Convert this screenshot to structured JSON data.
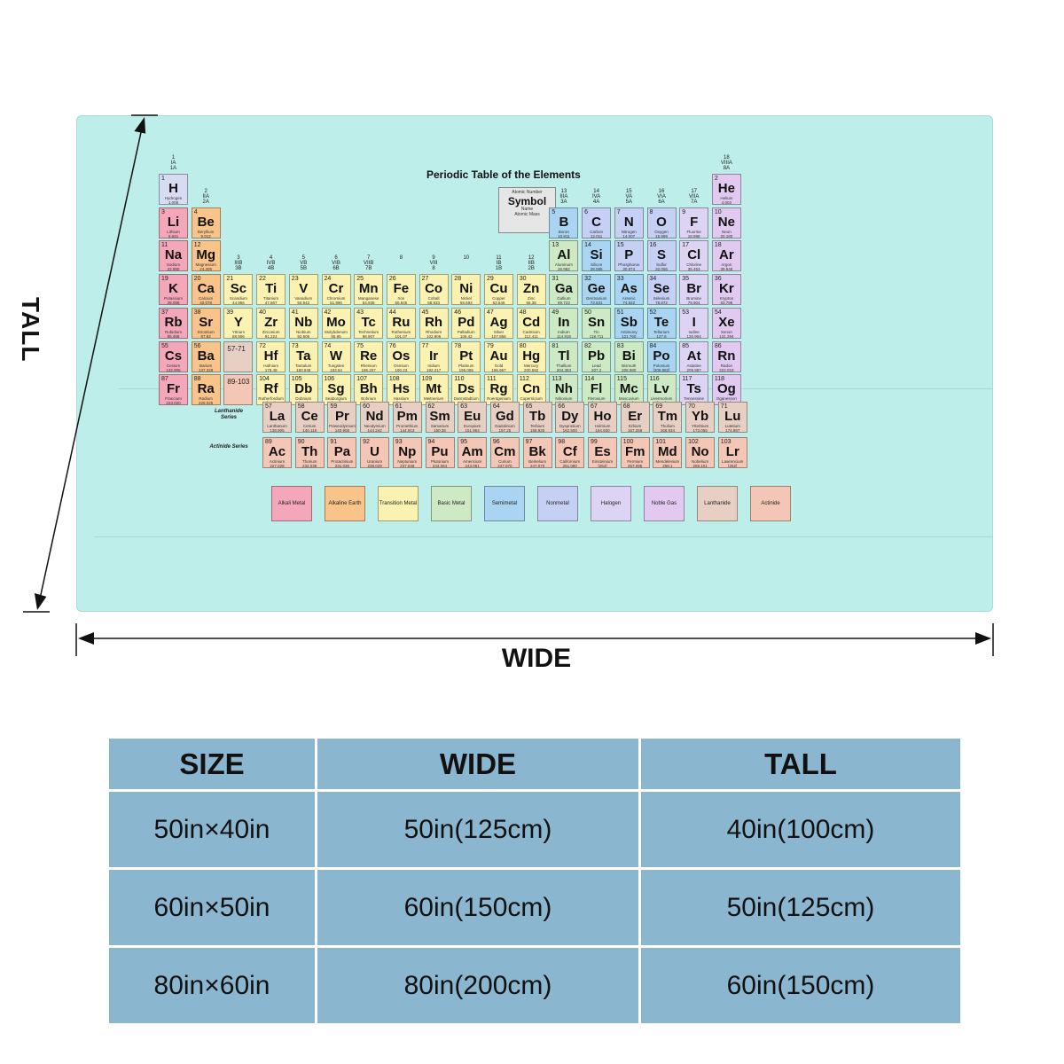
{
  "labels": {
    "tall": "TALL",
    "wide": "WIDE"
  },
  "size_table": {
    "headers": [
      "SIZE",
      "WIDE",
      "TALL"
    ],
    "rows": [
      [
        "50in×40in",
        "50in(125cm)",
        "40in(100cm)"
      ],
      [
        "60in×50in",
        "60in(150cm)",
        "50in(125cm)"
      ],
      [
        "80in×60in",
        "80in(200cm)",
        "60in(150cm)"
      ]
    ]
  },
  "periodic_table": {
    "title": "Periodic Table of the Elements",
    "key": {
      "atomic_number": "Atomic Number",
      "symbol": "Symbol",
      "name": "Name",
      "atomic_mass": "Atomic Mass"
    },
    "series_labels": {
      "lanthanide": "Lanthanide Series",
      "actinide": "Actinide Series"
    },
    "placeholders": {
      "lanthanides": "57-71",
      "actinides": "89-103"
    },
    "category_colors": {
      "alkali": "#f4a7b9",
      "alkaline": "#f9c48a",
      "transition": "#fbf1b0",
      "basic": "#cdeac4",
      "semimetal": "#a9d5f2",
      "nonmetal": "#c6cff4",
      "halogen": "#ddd3f3",
      "noble": "#e2c9ef",
      "lanthanide": "#e8cfc4",
      "actinide": "#f3c6b6",
      "hydrogen": "#d8dcf3"
    },
    "legend": [
      {
        "label": "Alkali Metal",
        "cat": "alkali"
      },
      {
        "label": "Alkaline Earth",
        "cat": "alkaline"
      },
      {
        "label": "Transition Metal",
        "cat": "transition"
      },
      {
        "label": "Basic Metal",
        "cat": "basic"
      },
      {
        "label": "Semimetal",
        "cat": "semimetal"
      },
      {
        "label": "Nonmetal",
        "cat": "nonmetal"
      },
      {
        "label": "Halogen",
        "cat": "halogen"
      },
      {
        "label": "Noble Gas",
        "cat": "noble"
      },
      {
        "label": "Lanthanide",
        "cat": "lanthanide"
      },
      {
        "label": "Actinide",
        "cat": "actinide"
      }
    ],
    "groups": [
      {
        "col": 1,
        "row": 1,
        "num": "1",
        "name": "IA",
        "alt": "1A"
      },
      {
        "col": 2,
        "row": 2,
        "num": "2",
        "name": "IIA",
        "alt": "2A"
      },
      {
        "col": 3,
        "row": 4,
        "num": "3",
        "name": "IIIB",
        "alt": "3B"
      },
      {
        "col": 4,
        "row": 4,
        "num": "4",
        "name": "IVB",
        "alt": "4B"
      },
      {
        "col": 5,
        "row": 4,
        "num": "5",
        "name": "VB",
        "alt": "5B"
      },
      {
        "col": 6,
        "row": 4,
        "num": "6",
        "name": "VIB",
        "alt": "6B"
      },
      {
        "col": 7,
        "row": 4,
        "num": "7",
        "name": "VIIB",
        "alt": "7B"
      },
      {
        "col": 8,
        "row": 4,
        "num": "8",
        "name": "",
        "alt": ""
      },
      {
        "col": 9,
        "row": 4,
        "num": "9",
        "name": "VIII",
        "alt": "8"
      },
      {
        "col": 10,
        "row": 4,
        "num": "10",
        "name": "",
        "alt": ""
      },
      {
        "col": 11,
        "row": 4,
        "num": "11",
        "name": "IB",
        "alt": "1B"
      },
      {
        "col": 12,
        "row": 4,
        "num": "12",
        "name": "IIB",
        "alt": "2B"
      },
      {
        "col": 13,
        "row": 2,
        "num": "13",
        "name": "IIIA",
        "alt": "3A"
      },
      {
        "col": 14,
        "row": 2,
        "num": "14",
        "name": "IVA",
        "alt": "4A"
      },
      {
        "col": 15,
        "row": 2,
        "num": "15",
        "name": "VA",
        "alt": "5A"
      },
      {
        "col": 16,
        "row": 2,
        "num": "16",
        "name": "VIA",
        "alt": "6A"
      },
      {
        "col": 17,
        "row": 2,
        "num": "17",
        "name": "VIIA",
        "alt": "7A"
      },
      {
        "col": 18,
        "row": 1,
        "num": "18",
        "name": "VIIIA",
        "alt": "8A"
      }
    ],
    "elements": [
      [
        "1",
        "H",
        "Hydrogen",
        "1.008",
        1,
        1,
        "hydrogen"
      ],
      [
        "2",
        "He",
        "Helium",
        "4.003",
        18,
        1,
        "noble"
      ],
      [
        "3",
        "Li",
        "Lithium",
        "6.941",
        1,
        2,
        "alkali"
      ],
      [
        "4",
        "Be",
        "Beryllium",
        "9.012",
        2,
        2,
        "alkaline"
      ],
      [
        "5",
        "B",
        "Boron",
        "10.811",
        13,
        2,
        "semimetal"
      ],
      [
        "6",
        "C",
        "Carbon",
        "12.011",
        14,
        2,
        "nonmetal"
      ],
      [
        "7",
        "N",
        "Nitrogen",
        "14.007",
        15,
        2,
        "nonmetal"
      ],
      [
        "8",
        "O",
        "Oxygen",
        "15.999",
        16,
        2,
        "nonmetal"
      ],
      [
        "9",
        "F",
        "Fluorine",
        "18.998",
        17,
        2,
        "halogen"
      ],
      [
        "10",
        "Ne",
        "Neon",
        "20.180",
        18,
        2,
        "noble"
      ],
      [
        "11",
        "Na",
        "Sodium",
        "22.990",
        1,
        3,
        "alkali"
      ],
      [
        "12",
        "Mg",
        "Magnesium",
        "24.305",
        2,
        3,
        "alkaline"
      ],
      [
        "13",
        "Al",
        "Aluminum",
        "26.982",
        13,
        3,
        "basic"
      ],
      [
        "14",
        "Si",
        "Silicon",
        "28.086",
        14,
        3,
        "semimetal"
      ],
      [
        "15",
        "P",
        "Phosphorus",
        "30.974",
        15,
        3,
        "nonmetal"
      ],
      [
        "16",
        "S",
        "Sulfur",
        "32.065",
        16,
        3,
        "nonmetal"
      ],
      [
        "17",
        "Cl",
        "Chlorine",
        "35.453",
        17,
        3,
        "halogen"
      ],
      [
        "18",
        "Ar",
        "Argon",
        "39.948",
        18,
        3,
        "noble"
      ],
      [
        "19",
        "K",
        "Potassium",
        "39.098",
        1,
        4,
        "alkali"
      ],
      [
        "20",
        "Ca",
        "Calcium",
        "40.078",
        2,
        4,
        "alkaline"
      ],
      [
        "21",
        "Sc",
        "Scandium",
        "44.956",
        3,
        4,
        "transition"
      ],
      [
        "22",
        "Ti",
        "Titanium",
        "47.867",
        4,
        4,
        "transition"
      ],
      [
        "23",
        "V",
        "Vanadium",
        "50.942",
        5,
        4,
        "transition"
      ],
      [
        "24",
        "Cr",
        "Chromium",
        "51.996",
        6,
        4,
        "transition"
      ],
      [
        "25",
        "Mn",
        "Manganese",
        "54.938",
        7,
        4,
        "transition"
      ],
      [
        "26",
        "Fe",
        "Iron",
        "55.845",
        8,
        4,
        "transition"
      ],
      [
        "27",
        "Co",
        "Cobalt",
        "58.933",
        9,
        4,
        "transition"
      ],
      [
        "28",
        "Ni",
        "Nickel",
        "58.693",
        10,
        4,
        "transition"
      ],
      [
        "29",
        "Cu",
        "Copper",
        "63.546",
        11,
        4,
        "transition"
      ],
      [
        "30",
        "Zn",
        "Zinc",
        "65.38",
        12,
        4,
        "transition"
      ],
      [
        "31",
        "Ga",
        "Gallium",
        "69.723",
        13,
        4,
        "basic"
      ],
      [
        "32",
        "Ge",
        "Germanium",
        "72.631",
        14,
        4,
        "semimetal"
      ],
      [
        "33",
        "As",
        "Arsenic",
        "74.922",
        15,
        4,
        "semimetal"
      ],
      [
        "34",
        "Se",
        "Selenium",
        "78.972",
        16,
        4,
        "nonmetal"
      ],
      [
        "35",
        "Br",
        "Bromine",
        "79.904",
        17,
        4,
        "halogen"
      ],
      [
        "36",
        "Kr",
        "Krypton",
        "83.798",
        18,
        4,
        "noble"
      ],
      [
        "37",
        "Rb",
        "Rubidium",
        "85.468",
        1,
        5,
        "alkali"
      ],
      [
        "38",
        "Sr",
        "Strontium",
        "87.62",
        2,
        5,
        "alkaline"
      ],
      [
        "39",
        "Y",
        "Yttrium",
        "88.906",
        3,
        5,
        "transition"
      ],
      [
        "40",
        "Zr",
        "Zirconium",
        "91.224",
        4,
        5,
        "transition"
      ],
      [
        "41",
        "Nb",
        "Niobium",
        "92.906",
        5,
        5,
        "transition"
      ],
      [
        "42",
        "Mo",
        "Molybdenum",
        "95.95",
        6,
        5,
        "transition"
      ],
      [
        "43",
        "Tc",
        "Technetium",
        "98.907",
        7,
        5,
        "transition"
      ],
      [
        "44",
        "Ru",
        "Ruthenium",
        "101.07",
        8,
        5,
        "transition"
      ],
      [
        "45",
        "Rh",
        "Rhodium",
        "102.906",
        9,
        5,
        "transition"
      ],
      [
        "46",
        "Pd",
        "Palladium",
        "106.42",
        10,
        5,
        "transition"
      ],
      [
        "47",
        "Ag",
        "Silver",
        "107.868",
        11,
        5,
        "transition"
      ],
      [
        "48",
        "Cd",
        "Cadmium",
        "112.411",
        12,
        5,
        "transition"
      ],
      [
        "49",
        "In",
        "Indium",
        "114.818",
        13,
        5,
        "basic"
      ],
      [
        "50",
        "Sn",
        "Tin",
        "118.711",
        14,
        5,
        "basic"
      ],
      [
        "51",
        "Sb",
        "Antimony",
        "121.760",
        15,
        5,
        "semimetal"
      ],
      [
        "52",
        "Te",
        "Tellurium",
        "127.6",
        16,
        5,
        "semimetal"
      ],
      [
        "53",
        "I",
        "Iodine",
        "126.904",
        17,
        5,
        "halogen"
      ],
      [
        "54",
        "Xe",
        "Xenon",
        "131.294",
        18,
        5,
        "noble"
      ],
      [
        "55",
        "Cs",
        "Cesium",
        "132.905",
        1,
        6,
        "alkali"
      ],
      [
        "56",
        "Ba",
        "Barium",
        "137.328",
        2,
        6,
        "alkaline"
      ],
      [
        "72",
        "Hf",
        "Hafnium",
        "178.49",
        4,
        6,
        "transition"
      ],
      [
        "73",
        "Ta",
        "Tantalum",
        "180.948",
        5,
        6,
        "transition"
      ],
      [
        "74",
        "W",
        "Tungsten",
        "183.84",
        6,
        6,
        "transition"
      ],
      [
        "75",
        "Re",
        "Rhenium",
        "186.207",
        7,
        6,
        "transition"
      ],
      [
        "76",
        "Os",
        "Osmium",
        "190.23",
        8,
        6,
        "transition"
      ],
      [
        "77",
        "Ir",
        "Iridium",
        "192.217",
        9,
        6,
        "transition"
      ],
      [
        "78",
        "Pt",
        "Platinum",
        "195.085",
        10,
        6,
        "transition"
      ],
      [
        "79",
        "Au",
        "Gold",
        "196.967",
        11,
        6,
        "transition"
      ],
      [
        "80",
        "Hg",
        "Mercury",
        "200.592",
        12,
        6,
        "transition"
      ],
      [
        "81",
        "Tl",
        "Thallium",
        "204.383",
        13,
        6,
        "basic"
      ],
      [
        "82",
        "Pb",
        "Lead",
        "207.2",
        14,
        6,
        "basic"
      ],
      [
        "83",
        "Bi",
        "Bismuth",
        "208.980",
        15,
        6,
        "basic"
      ],
      [
        "84",
        "Po",
        "Polonium",
        "[208.982]",
        16,
        6,
        "semimetal"
      ],
      [
        "85",
        "At",
        "Astatine",
        "209.987",
        17,
        6,
        "halogen"
      ],
      [
        "86",
        "Rn",
        "Radon",
        "222.018",
        18,
        6,
        "noble"
      ],
      [
        "87",
        "Fr",
        "Francium",
        "223.020",
        1,
        7,
        "alkali"
      ],
      [
        "88",
        "Ra",
        "Radium",
        "226.025",
        2,
        7,
        "alkaline"
      ],
      [
        "104",
        "Rf",
        "Rutherfordium",
        "[261]",
        4,
        7,
        "transition"
      ],
      [
        "105",
        "Db",
        "Dubnium",
        "[262]",
        5,
        7,
        "transition"
      ],
      [
        "106",
        "Sg",
        "Seaborgium",
        "[266]",
        6,
        7,
        "transition"
      ],
      [
        "107",
        "Bh",
        "Bohrium",
        "[264]",
        7,
        7,
        "transition"
      ],
      [
        "108",
        "Hs",
        "Hassium",
        "[269]",
        8,
        7,
        "transition"
      ],
      [
        "109",
        "Mt",
        "Meitnerium",
        "[278]",
        9,
        7,
        "transition"
      ],
      [
        "110",
        "Ds",
        "Darmstadtium",
        "[281]",
        10,
        7,
        "transition"
      ],
      [
        "111",
        "Rg",
        "Roentgenium",
        "[280]",
        11,
        7,
        "transition"
      ],
      [
        "112",
        "Cn",
        "Copernicium",
        "[285]",
        12,
        7,
        "transition"
      ],
      [
        "113",
        "Nh",
        "Nihonium",
        "[286]",
        13,
        7,
        "basic"
      ],
      [
        "114",
        "Fl",
        "Flerovium",
        "[289]",
        14,
        7,
        "basic"
      ],
      [
        "115",
        "Mc",
        "Moscovium",
        "[289]",
        15,
        7,
        "basic"
      ],
      [
        "116",
        "Lv",
        "Livermorium",
        "[293]",
        16,
        7,
        "basic"
      ],
      [
        "117",
        "Ts",
        "Tennessine",
        "[294]",
        17,
        7,
        "halogen"
      ],
      [
        "118",
        "Og",
        "Oganesson",
        "[294]",
        18,
        7,
        "noble"
      ]
    ],
    "lanthanides": [
      [
        "57",
        "La",
        "Lanthanum",
        "138.905"
      ],
      [
        "58",
        "Ce",
        "Cerium",
        "140.116"
      ],
      [
        "59",
        "Pr",
        "Praseodymium",
        "140.908"
      ],
      [
        "60",
        "Nd",
        "Neodymium",
        "144.242"
      ],
      [
        "61",
        "Pm",
        "Promethium",
        "144.913"
      ],
      [
        "62",
        "Sm",
        "Samarium",
        "150.36"
      ],
      [
        "63",
        "Eu",
        "Europium",
        "151.964"
      ],
      [
        "64",
        "Gd",
        "Gadolinium",
        "157.25"
      ],
      [
        "65",
        "Tb",
        "Terbium",
        "158.925"
      ],
      [
        "66",
        "Dy",
        "Dysprosium",
        "162.500"
      ],
      [
        "67",
        "Ho",
        "Holmium",
        "164.930"
      ],
      [
        "68",
        "Er",
        "Erbium",
        "167.259"
      ],
      [
        "69",
        "Tm",
        "Thulium",
        "168.934"
      ],
      [
        "70",
        "Yb",
        "Ytterbium",
        "173.055"
      ],
      [
        "71",
        "Lu",
        "Lutetium",
        "174.967"
      ]
    ],
    "actinides": [
      [
        "89",
        "Ac",
        "Actinium",
        "227.028"
      ],
      [
        "90",
        "Th",
        "Thorium",
        "232.038"
      ],
      [
        "91",
        "Pa",
        "Protactinium",
        "231.036"
      ],
      [
        "92",
        "U",
        "Uranium",
        "238.029"
      ],
      [
        "93",
        "Np",
        "Neptunium",
        "237.048"
      ],
      [
        "94",
        "Pu",
        "Plutonium",
        "244.064"
      ],
      [
        "95",
        "Am",
        "Americium",
        "243.061"
      ],
      [
        "96",
        "Cm",
        "Curium",
        "247.070"
      ],
      [
        "97",
        "Bk",
        "Berkelium",
        "247.070"
      ],
      [
        "98",
        "Cf",
        "Californium",
        "251.080"
      ],
      [
        "99",
        "Es",
        "Einsteinium",
        "[254]"
      ],
      [
        "100",
        "Fm",
        "Fermium",
        "257.095"
      ],
      [
        "101",
        "Md",
        "Mendelevium",
        "258.1"
      ],
      [
        "102",
        "No",
        "Nobelium",
        "259.101"
      ],
      [
        "103",
        "Lr",
        "Lawrencium",
        "[262]"
      ]
    ]
  }
}
